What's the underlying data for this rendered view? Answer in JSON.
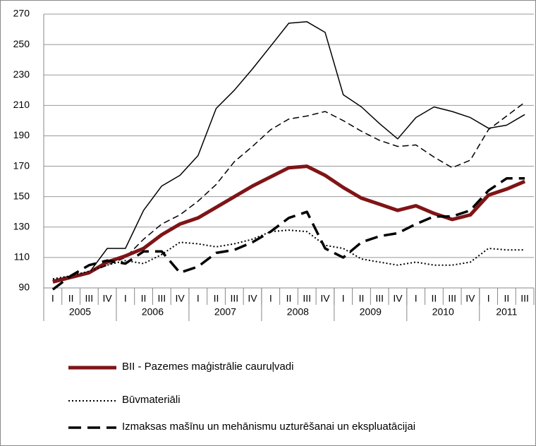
{
  "chart_data": {
    "type": "line",
    "categories": [
      "I",
      "II",
      "III",
      "IV",
      "I",
      "II",
      "III",
      "IV",
      "I",
      "II",
      "III",
      "IV",
      "I",
      "II",
      "III",
      "IV",
      "I",
      "II",
      "III",
      "IV",
      "I",
      "II",
      "III",
      "IV",
      "I",
      "II",
      "III"
    ],
    "groups": [
      {
        "label": "2005",
        "count": 4
      },
      {
        "label": "2006",
        "count": 4
      },
      {
        "label": "2007",
        "count": 4
      },
      {
        "label": "2008",
        "count": 4
      },
      {
        "label": "2009",
        "count": 4
      },
      {
        "label": "2010",
        "count": 4
      },
      {
        "label": "2011",
        "count": 3
      }
    ],
    "ylim": [
      90,
      270
    ],
    "yticks": [
      90,
      110,
      130,
      150,
      170,
      190,
      210,
      230,
      250,
      270
    ],
    "grid": true,
    "series": [
      {
        "color": "#000000",
        "style": "solid",
        "width": 1.5,
        "values": [
          95,
          98,
          100,
          116,
          116,
          141,
          157,
          164,
          177,
          208,
          220,
          234,
          249,
          264,
          265,
          258,
          217,
          209,
          198,
          188,
          202,
          209,
          206,
          202,
          195,
          197,
          204
        ]
      },
      {
        "color": "#000000",
        "style": "dashed",
        "width": 1.5,
        "values": [
          95,
          98,
          100,
          105,
          110,
          122,
          132,
          138,
          147,
          158,
          173,
          183,
          194,
          201,
          203,
          206,
          200,
          193,
          187,
          183,
          184,
          176,
          169,
          174,
          194,
          203,
          212
        ]
      },
      {
        "name": "BII - Pazemes maģistrālie cauruļvadi",
        "color": "#7f1416",
        "style": "solid",
        "width": 5,
        "values": [
          94,
          97,
          100,
          107,
          111,
          116,
          125,
          132,
          136,
          143,
          150,
          157,
          163,
          169,
          170,
          164,
          156,
          149,
          145,
          141,
          144,
          139,
          135,
          138,
          151,
          155,
          160
        ]
      },
      {
        "name": "Būvmateriāli",
        "color": "#000000",
        "style": "dotted",
        "width": 2,
        "values": [
          96,
          98,
          101,
          105,
          108,
          106,
          112,
          120,
          119,
          117,
          119,
          122,
          127,
          128,
          127,
          118,
          116,
          109,
          107,
          105,
          107,
          105,
          105,
          107,
          116,
          115,
          115
        ]
      },
      {
        "name": "Izmaksas mašīnu un mehānismu uzturēšanai un ekspluatācijai",
        "color": "#000000",
        "style": "longdash",
        "width": 3.5,
        "values": [
          89,
          98,
          105,
          108,
          106,
          114,
          114,
          100,
          104,
          113,
          115,
          120,
          127,
          136,
          140,
          116,
          110,
          120,
          124,
          126,
          132,
          137,
          137,
          141,
          154,
          162,
          162
        ]
      }
    ]
  }
}
